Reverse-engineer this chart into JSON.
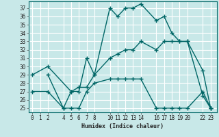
{
  "xlabel": "Humidex (Indice chaleur)",
  "bg_color": "#c8e8e8",
  "grid_color": "#ffffff",
  "line_color": "#006666",
  "ylim": [
    24.5,
    37.8
  ],
  "yticks": [
    25,
    26,
    27,
    28,
    29,
    30,
    31,
    32,
    33,
    34,
    35,
    36,
    37
  ],
  "xticks": [
    0,
    1,
    2,
    4,
    5,
    6,
    7,
    8,
    10,
    11,
    12,
    13,
    14,
    16,
    17,
    18,
    19,
    20,
    22,
    23
  ],
  "xlim": [
    -0.5,
    23.8
  ],
  "line1_x": [
    2,
    4,
    5,
    6,
    7,
    8,
    10,
    11,
    12,
    13,
    14,
    16,
    17,
    18,
    19,
    20,
    22,
    23
  ],
  "line1_y": [
    29,
    25,
    27,
    27,
    31,
    29,
    37,
    36,
    37,
    37,
    37.5,
    35.5,
    36,
    34,
    33,
    33,
    26.5,
    25
  ],
  "line2_x": [
    0,
    2,
    5,
    6,
    7,
    8,
    10,
    11,
    12,
    13,
    14,
    16,
    17,
    18,
    19,
    20,
    22,
    23
  ],
  "line2_y": [
    29,
    30,
    27,
    27.5,
    27.5,
    29,
    31,
    31.5,
    32,
    32,
    33,
    32,
    33,
    33,
    33,
    33,
    29.5,
    25
  ],
  "line3_x": [
    0,
    2,
    4,
    5,
    6,
    7,
    8,
    10,
    11,
    12,
    13,
    14,
    16,
    17,
    18,
    19,
    20,
    22,
    23
  ],
  "line3_y": [
    27,
    27,
    25,
    25,
    25,
    27,
    28,
    28.5,
    28.5,
    28.5,
    28.5,
    28.5,
    25,
    25,
    25,
    25,
    25,
    27,
    25
  ]
}
